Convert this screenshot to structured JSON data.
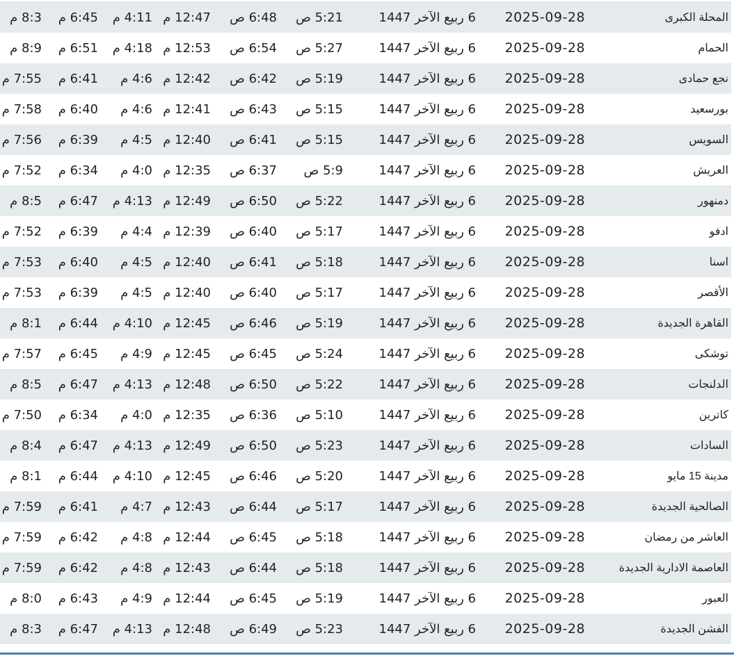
{
  "table": {
    "rows": [
      {
        "city": "المحلة الكبرى",
        "date": "2025-09-28",
        "hijri": "6 ربيع الآخر 1447",
        "fajr": "5:21 ص",
        "sunrise": "6:48 ص",
        "dhuhr": "12:47 م",
        "asr": "4:11 م",
        "maghrib": "6:45 م",
        "isha": "8:3 م"
      },
      {
        "city": "الحمام",
        "date": "2025-09-28",
        "hijri": "6 ربيع الآخر 1447",
        "fajr": "5:27 ص",
        "sunrise": "6:54 ص",
        "dhuhr": "12:53 م",
        "asr": "4:18 م",
        "maghrib": "6:51 م",
        "isha": "8:9 م"
      },
      {
        "city": "نجع حمادى",
        "date": "2025-09-28",
        "hijri": "6 ربيع الآخر 1447",
        "fajr": "5:19 ص",
        "sunrise": "6:42 ص",
        "dhuhr": "12:42 م",
        "asr": "4:6 م",
        "maghrib": "6:41 م",
        "isha": "7:55 م"
      },
      {
        "city": "بورسعيد",
        "date": "2025-09-28",
        "hijri": "6 ربيع الآخر 1447",
        "fajr": "5:15 ص",
        "sunrise": "6:43 ص",
        "dhuhr": "12:41 م",
        "asr": "4:6 م",
        "maghrib": "6:40 م",
        "isha": "7:58 م"
      },
      {
        "city": "السويس",
        "date": "2025-09-28",
        "hijri": "6 ربيع الآخر 1447",
        "fajr": "5:15 ص",
        "sunrise": "6:41 ص",
        "dhuhr": "12:40 م",
        "asr": "4:5 م",
        "maghrib": "6:39 م",
        "isha": "7:56 م"
      },
      {
        "city": "العريش",
        "date": "2025-09-28",
        "hijri": "6 ربيع الآخر 1447",
        "fajr": "5:9 ص",
        "sunrise": "6:37 ص",
        "dhuhr": "12:35 م",
        "asr": "4:0 م",
        "maghrib": "6:34 م",
        "isha": "7:52 م"
      },
      {
        "city": "دمنهور",
        "date": "2025-09-28",
        "hijri": "6 ربيع الآخر 1447",
        "fajr": "5:22 ص",
        "sunrise": "6:50 ص",
        "dhuhr": "12:49 م",
        "asr": "4:13 م",
        "maghrib": "6:47 م",
        "isha": "8:5 م"
      },
      {
        "city": "ادفو",
        "date": "2025-09-28",
        "hijri": "6 ربيع الآخر 1447",
        "fajr": "5:17 ص",
        "sunrise": "6:40 ص",
        "dhuhr": "12:39 م",
        "asr": "4:4 م",
        "maghrib": "6:39 م",
        "isha": "7:52 م"
      },
      {
        "city": "اسنا",
        "date": "2025-09-28",
        "hijri": "6 ربيع الآخر 1447",
        "fajr": "5:18 ص",
        "sunrise": "6:41 ص",
        "dhuhr": "12:40 م",
        "asr": "4:5 م",
        "maghrib": "6:40 م",
        "isha": "7:53 م"
      },
      {
        "city": "الأقصر",
        "date": "2025-09-28",
        "hijri": "6 ربيع الآخر 1447",
        "fajr": "5:17 ص",
        "sunrise": "6:40 ص",
        "dhuhr": "12:40 م",
        "asr": "4:5 م",
        "maghrib": "6:39 م",
        "isha": "7:53 م"
      },
      {
        "city": "القاهرة الجديدة",
        "date": "2025-09-28",
        "hijri": "6 ربيع الآخر 1447",
        "fajr": "5:19 ص",
        "sunrise": "6:46 ص",
        "dhuhr": "12:45 م",
        "asr": "4:10 م",
        "maghrib": "6:44 م",
        "isha": "8:1 م"
      },
      {
        "city": "توشكى",
        "date": "2025-09-28",
        "hijri": "6 ربيع الآخر 1447",
        "fajr": "5:24 ص",
        "sunrise": "6:45 ص",
        "dhuhr": "12:45 م",
        "asr": "4:9 م",
        "maghrib": "6:45 م",
        "isha": "7:57 م"
      },
      {
        "city": "الدلنجات",
        "date": "2025-09-28",
        "hijri": "6 ربيع الآخر 1447",
        "fajr": "5:22 ص",
        "sunrise": "6:50 ص",
        "dhuhr": "12:48 م",
        "asr": "4:13 م",
        "maghrib": "6:47 م",
        "isha": "8:5 م"
      },
      {
        "city": "كاترين",
        "date": "2025-09-28",
        "hijri": "6 ربيع الآخر 1447",
        "fajr": "5:10 ص",
        "sunrise": "6:36 ص",
        "dhuhr": "12:35 م",
        "asr": "4:0 م",
        "maghrib": "6:34 م",
        "isha": "7:50 م"
      },
      {
        "city": "السادات",
        "date": "2025-09-28",
        "hijri": "6 ربيع الآخر 1447",
        "fajr": "5:23 ص",
        "sunrise": "6:50 ص",
        "dhuhr": "12:49 م",
        "asr": "4:13 م",
        "maghrib": "6:47 م",
        "isha": "8:4 م"
      },
      {
        "city": "مدينة 15 مايو",
        "date": "2025-09-28",
        "hijri": "6 ربيع الآخر 1447",
        "fajr": "5:20 ص",
        "sunrise": "6:46 ص",
        "dhuhr": "12:45 م",
        "asr": "4:10 م",
        "maghrib": "6:44 م",
        "isha": "8:1 م"
      },
      {
        "city": "الصالحية الجديدة",
        "date": "2025-09-28",
        "hijri": "6 ربيع الآخر 1447",
        "fajr": "5:17 ص",
        "sunrise": "6:44 ص",
        "dhuhr": "12:43 م",
        "asr": "4:7 م",
        "maghrib": "6:41 م",
        "isha": "7:59 م"
      },
      {
        "city": "العاشر من رمضان",
        "date": "2025-09-28",
        "hijri": "6 ربيع الآخر 1447",
        "fajr": "5:18 ص",
        "sunrise": "6:45 ص",
        "dhuhr": "12:44 م",
        "asr": "4:8 م",
        "maghrib": "6:42 م",
        "isha": "7:59 م"
      },
      {
        "city": "العاصمة الادارية الجديدة",
        "date": "2025-09-28",
        "hijri": "6 ربيع الآخر 1447",
        "fajr": "5:18 ص",
        "sunrise": "6:44 ص",
        "dhuhr": "12:43 م",
        "asr": "4:8 م",
        "maghrib": "6:42 م",
        "isha": "7:59 م"
      },
      {
        "city": "العبور",
        "date": "2025-09-28",
        "hijri": "6 ربيع الآخر 1447",
        "fajr": "5:19 ص",
        "sunrise": "6:45 ص",
        "dhuhr": "12:44 م",
        "asr": "4:9 م",
        "maghrib": "6:43 م",
        "isha": "8:0 م"
      },
      {
        "city": "الفشن الجديدة",
        "date": "2025-09-28",
        "hijri": "6 ربيع الآخر 1447",
        "fajr": "5:23 ص",
        "sunrise": "6:49 ص",
        "dhuhr": "12:48 م",
        "asr": "4:13 م",
        "maghrib": "6:47 م",
        "isha": "8:3 م"
      }
    ]
  },
  "colors": {
    "row_alt": "#e5eaed",
    "text": "#222222",
    "window_edge": "#4a7fb0"
  }
}
